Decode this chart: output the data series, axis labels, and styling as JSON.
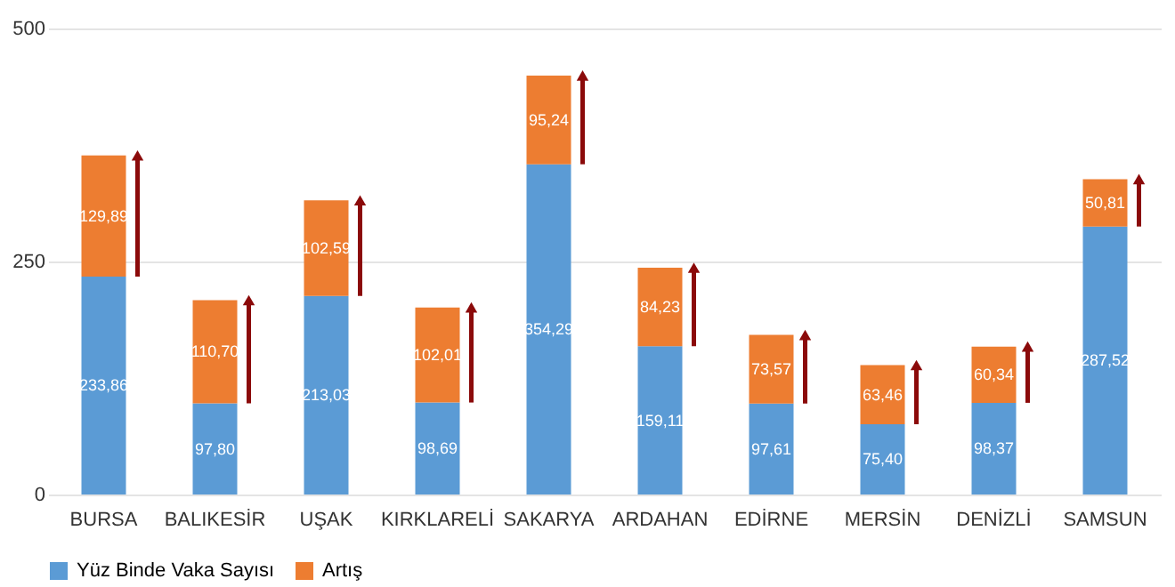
{
  "chart_data": {
    "type": "bar",
    "stacked": true,
    "categories": [
      "BURSA",
      "BALIKESİR",
      "UŞAK",
      "KIRKLARELİ",
      "SAKARYA",
      "ARDAHAN",
      "EDİRNE",
      "MERSİN",
      "DENİZLİ",
      "SAMSUN"
    ],
    "series": [
      {
        "name": "Yüz Binde Vaka Sayısı",
        "color": "#5b9bd5",
        "values": [
          233.86,
          97.8,
          213.03,
          98.69,
          354.29,
          159.11,
          97.61,
          75.4,
          98.37,
          287.52
        ],
        "value_labels": [
          "233,86",
          "97,80",
          "213,03",
          "98,69",
          "354,29",
          "159,11",
          "97,61",
          "75,40",
          "98,37",
          "287,52"
        ]
      },
      {
        "name": "Artış",
        "color": "#ed7d31",
        "values": [
          129.89,
          110.7,
          102.59,
          102.01,
          95.24,
          84.23,
          73.57,
          63.46,
          60.34,
          50.81
        ],
        "value_labels": [
          "129,89",
          "110,70",
          "102,59",
          "102,01",
          "95,24",
          "84,23",
          "73,57",
          "63,46",
          "60,34",
          "50,81"
        ]
      }
    ],
    "ylim": [
      0,
      500
    ],
    "yticks": [
      0,
      250,
      500
    ],
    "grid": "y",
    "legend": "bottom"
  }
}
